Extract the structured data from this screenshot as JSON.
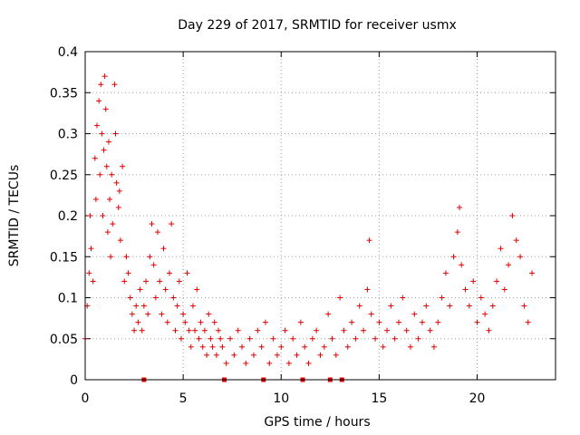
{
  "chart_data": {
    "type": "scatter",
    "title": "Day 229 of 2017, SRMTID for receiver usmx",
    "xlabel": "GPS time / hours",
    "ylabel": "SRMTID / TECUs",
    "xlim": [
      0,
      24
    ],
    "ylim": [
      0,
      0.4
    ],
    "xticks": [
      0,
      5,
      10,
      15,
      20
    ],
    "xtick_labels": [
      "0",
      "5",
      "10",
      "15",
      "20"
    ],
    "yticks": [
      0,
      0.05,
      0.1,
      0.15,
      0.2,
      0.25,
      0.3,
      0.35,
      0.4
    ],
    "ytick_labels": [
      "0",
      "0.05",
      "0.1",
      "0.15",
      "0.2",
      "0.25",
      "0.3",
      "0.35",
      "0.4"
    ],
    "grid": true,
    "marker": "+",
    "color": "#e00000",
    "gap_markers_x": [
      3.0,
      7.1,
      9.1,
      11.1,
      12.5,
      13.1
    ],
    "series": [
      {
        "name": "SRMTID",
        "x": [
          0.0,
          0.1,
          0.2,
          0.25,
          0.3,
          0.4,
          0.5,
          0.55,
          0.6,
          0.7,
          0.75,
          0.8,
          0.85,
          0.9,
          0.95,
          1.0,
          1.05,
          1.1,
          1.15,
          1.2,
          1.25,
          1.3,
          1.35,
          1.4,
          1.5,
          1.55,
          1.6,
          1.7,
          1.75,
          1.8,
          1.9,
          2.0,
          2.1,
          2.2,
          2.3,
          2.4,
          2.5,
          2.6,
          2.7,
          2.8,
          2.9,
          3.0,
          3.1,
          3.2,
          3.3,
          3.4,
          3.5,
          3.6,
          3.7,
          3.8,
          3.9,
          4.0,
          4.1,
          4.2,
          4.3,
          4.4,
          4.5,
          4.6,
          4.7,
          4.8,
          4.9,
          5.0,
          5.1,
          5.2,
          5.3,
          5.4,
          5.5,
          5.6,
          5.7,
          5.8,
          5.9,
          6.0,
          6.1,
          6.2,
          6.3,
          6.4,
          6.5,
          6.6,
          6.7,
          6.8,
          6.9,
          7.0,
          7.2,
          7.4,
          7.6,
          7.8,
          8.0,
          8.2,
          8.4,
          8.6,
          8.8,
          9.0,
          9.2,
          9.4,
          9.6,
          9.8,
          10.0,
          10.2,
          10.4,
          10.6,
          10.8,
          11.0,
          11.2,
          11.4,
          11.6,
          11.8,
          12.0,
          12.2,
          12.4,
          12.6,
          12.8,
          13.0,
          13.2,
          13.4,
          13.6,
          13.8,
          14.0,
          14.2,
          14.4,
          14.5,
          14.6,
          14.8,
          15.0,
          15.2,
          15.4,
          15.6,
          15.8,
          16.0,
          16.2,
          16.4,
          16.6,
          16.8,
          17.0,
          17.2,
          17.4,
          17.6,
          17.8,
          18.0,
          18.2,
          18.4,
          18.6,
          18.8,
          19.0,
          19.1,
          19.2,
          19.4,
          19.6,
          19.8,
          20.0,
          20.2,
          20.4,
          20.6,
          20.8,
          21.0,
          21.2,
          21.4,
          21.6,
          21.8,
          22.0,
          22.2,
          22.4,
          22.6,
          22.8
        ],
        "y": [
          0.05,
          0.09,
          0.13,
          0.2,
          0.16,
          0.12,
          0.27,
          0.22,
          0.31,
          0.34,
          0.25,
          0.36,
          0.3,
          0.2,
          0.28,
          0.37,
          0.33,
          0.26,
          0.18,
          0.29,
          0.22,
          0.15,
          0.25,
          0.19,
          0.36,
          0.3,
          0.24,
          0.21,
          0.23,
          0.17,
          0.26,
          0.12,
          0.15,
          0.13,
          0.1,
          0.08,
          0.06,
          0.09,
          0.07,
          0.11,
          0.06,
          0.09,
          0.12,
          0.08,
          0.15,
          0.19,
          0.14,
          0.1,
          0.18,
          0.12,
          0.08,
          0.16,
          0.11,
          0.07,
          0.13,
          0.19,
          0.1,
          0.06,
          0.09,
          0.12,
          0.05,
          0.08,
          0.07,
          0.13,
          0.06,
          0.04,
          0.09,
          0.06,
          0.11,
          0.05,
          0.07,
          0.04,
          0.06,
          0.03,
          0.08,
          0.05,
          0.04,
          0.07,
          0.03,
          0.06,
          0.05,
          0.04,
          0.02,
          0.05,
          0.03,
          0.06,
          0.04,
          0.02,
          0.05,
          0.03,
          0.06,
          0.04,
          0.07,
          0.02,
          0.05,
          0.03,
          0.04,
          0.06,
          0.02,
          0.05,
          0.03,
          0.07,
          0.04,
          0.02,
          0.05,
          0.06,
          0.03,
          0.04,
          0.08,
          0.05,
          0.03,
          0.1,
          0.06,
          0.04,
          0.07,
          0.05,
          0.09,
          0.06,
          0.11,
          0.17,
          0.08,
          0.05,
          0.07,
          0.04,
          0.06,
          0.09,
          0.05,
          0.07,
          0.1,
          0.06,
          0.04,
          0.08,
          0.05,
          0.07,
          0.09,
          0.06,
          0.04,
          0.07,
          0.1,
          0.13,
          0.09,
          0.15,
          0.18,
          0.21,
          0.14,
          0.11,
          0.09,
          0.12,
          0.07,
          0.1,
          0.08,
          0.06,
          0.09,
          0.12,
          0.16,
          0.11,
          0.14,
          0.2,
          0.17,
          0.15,
          0.09,
          0.07,
          0.13
        ]
      }
    ]
  }
}
